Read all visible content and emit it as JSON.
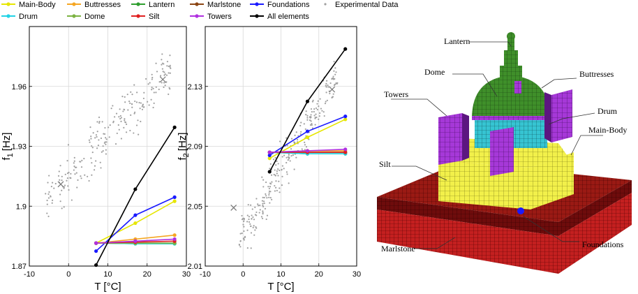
{
  "legend": [
    {
      "name": "Main-Body",
      "color": "#e6e600",
      "kind": "line"
    },
    {
      "name": "Buttresses",
      "color": "#f5a623",
      "kind": "line"
    },
    {
      "name": "Lantern",
      "color": "#2e9e2e",
      "kind": "line"
    },
    {
      "name": "Marlstone",
      "color": "#8b4513",
      "kind": "line"
    },
    {
      "name": "Foundations",
      "color": "#1a1aff",
      "kind": "line"
    },
    {
      "name": "Drum",
      "color": "#22d3e6",
      "kind": "line"
    },
    {
      "name": "Dome",
      "color": "#7cb342",
      "kind": "line"
    },
    {
      "name": "Silt",
      "color": "#e02020",
      "kind": "line"
    },
    {
      "name": "Towers",
      "color": "#b030e0",
      "kind": "line"
    },
    {
      "name": "All elements",
      "color": "#000000",
      "kind": "line"
    },
    {
      "name": "Experimental Data",
      "color": "#a0a0a0",
      "kind": "dot"
    }
  ],
  "chart_data": [
    {
      "type": "line",
      "xlabel": "T [°C]",
      "ylabel": "f",
      "ylabel_sub": "1",
      "ylabel_unit": "[Hz]",
      "xlim": [
        -10,
        30
      ],
      "ylim": [
        1.87,
        1.99
      ],
      "xticks": [
        -10,
        0,
        10,
        20,
        30
      ],
      "yticks": [
        1.87,
        1.9,
        1.93,
        1.96
      ],
      "ytick_labels": [
        "1.87",
        "1.9",
        "1.93",
        "1.96"
      ],
      "grid": true,
      "x": [
        7,
        17,
        27
      ],
      "series": [
        {
          "name": "Main-Body",
          "color": "#e6e600",
          "values": [
            1.8815,
            1.8915,
            1.9025
          ]
        },
        {
          "name": "Buttresses",
          "color": "#f5a623",
          "values": [
            1.8815,
            1.8835,
            1.8855
          ]
        },
        {
          "name": "Lantern",
          "color": "#2e9e2e",
          "values": [
            1.8815,
            1.8812,
            1.8812
          ]
        },
        {
          "name": "Marlstone",
          "color": "#8b4513",
          "values": [
            1.8815,
            1.8815,
            1.8815
          ]
        },
        {
          "name": "Foundations",
          "color": "#1a1aff",
          "values": [
            1.8775,
            1.8955,
            1.9045
          ]
        },
        {
          "name": "Drum",
          "color": "#22d3e6",
          "values": [
            1.8815,
            1.8812,
            1.8812
          ]
        },
        {
          "name": "Dome",
          "color": "#7cb342",
          "values": [
            1.8815,
            1.8815,
            1.8815
          ]
        },
        {
          "name": "Silt",
          "color": "#e02020",
          "values": [
            1.8815,
            1.882,
            1.8825
          ]
        },
        {
          "name": "Towers",
          "color": "#b030e0",
          "values": [
            1.8815,
            1.8825,
            1.8835
          ]
        },
        {
          "name": "All elements",
          "color": "#000000",
          "values": [
            1.8705,
            1.9085,
            1.9395
          ]
        }
      ],
      "markers": [
        {
          "x": -2,
          "y": 1.911
        },
        {
          "x": 24,
          "y": 1.9635
        }
      ]
    },
    {
      "type": "line",
      "xlabel": "T [°C]",
      "ylabel": "f",
      "ylabel_sub": "2",
      "ylabel_unit": "[Hz]",
      "xlim": [
        -10,
        30
      ],
      "ylim": [
        2.01,
        2.17
      ],
      "xticks": [
        -10,
        0,
        10,
        20,
        30
      ],
      "yticks": [
        2.01,
        2.05,
        2.09,
        2.13
      ],
      "ytick_labels": [
        "2.01",
        "2.05",
        "2.09",
        "2.13"
      ],
      "grid": true,
      "x": [
        7,
        17,
        27
      ],
      "series": [
        {
          "name": "Main-Body",
          "color": "#e6e600",
          "values": [
            2.082,
            2.096,
            2.108
          ]
        },
        {
          "name": "Buttresses",
          "color": "#f5a623",
          "values": [
            2.086,
            2.087,
            2.087
          ]
        },
        {
          "name": "Lantern",
          "color": "#2e9e2e",
          "values": [
            2.086,
            2.085,
            2.085
          ]
        },
        {
          "name": "Marlstone",
          "color": "#8b4513",
          "values": [
            2.086,
            2.086,
            2.086
          ]
        },
        {
          "name": "Foundations",
          "color": "#1a1aff",
          "values": [
            2.084,
            2.1,
            2.11
          ]
        },
        {
          "name": "Drum",
          "color": "#22d3e6",
          "values": [
            2.086,
            2.085,
            2.085
          ]
        },
        {
          "name": "Dome",
          "color": "#7cb342",
          "values": [
            2.086,
            2.086,
            2.086
          ]
        },
        {
          "name": "Silt",
          "color": "#e02020",
          "values": [
            2.086,
            2.086,
            2.086
          ]
        },
        {
          "name": "Towers",
          "color": "#b030e0",
          "values": [
            2.086,
            2.087,
            2.088
          ]
        },
        {
          "name": "All elements",
          "color": "#000000",
          "values": [
            2.073,
            2.12,
            2.155
          ]
        }
      ],
      "markers": [
        {
          "x": -2.5,
          "y": 2.049
        },
        {
          "x": 23.5,
          "y": 2.128
        }
      ]
    }
  ],
  "model_labels": [
    {
      "key": "lantern",
      "text": "Lantern"
    },
    {
      "key": "dome",
      "text": "Dome"
    },
    {
      "key": "buttresses",
      "text": "Buttresses"
    },
    {
      "key": "towers",
      "text": "Towers"
    },
    {
      "key": "drum",
      "text": "Drum"
    },
    {
      "key": "mainbody",
      "text": "Main-Body"
    },
    {
      "key": "silt",
      "text": "Silt"
    },
    {
      "key": "marlstone",
      "text": "Marlstone"
    },
    {
      "key": "foundations",
      "text": "Foundations"
    }
  ],
  "colors": {
    "grid": "#d8d8d8",
    "scatter": "#a0a0a0",
    "cross": "#777777",
    "model_yellow": "#f0f050",
    "model_purple": "#a030d0",
    "model_green": "#3a8a2a",
    "model_cyan": "#30c0d0",
    "model_soil": "#7a1010",
    "model_marl": "#c02020"
  }
}
